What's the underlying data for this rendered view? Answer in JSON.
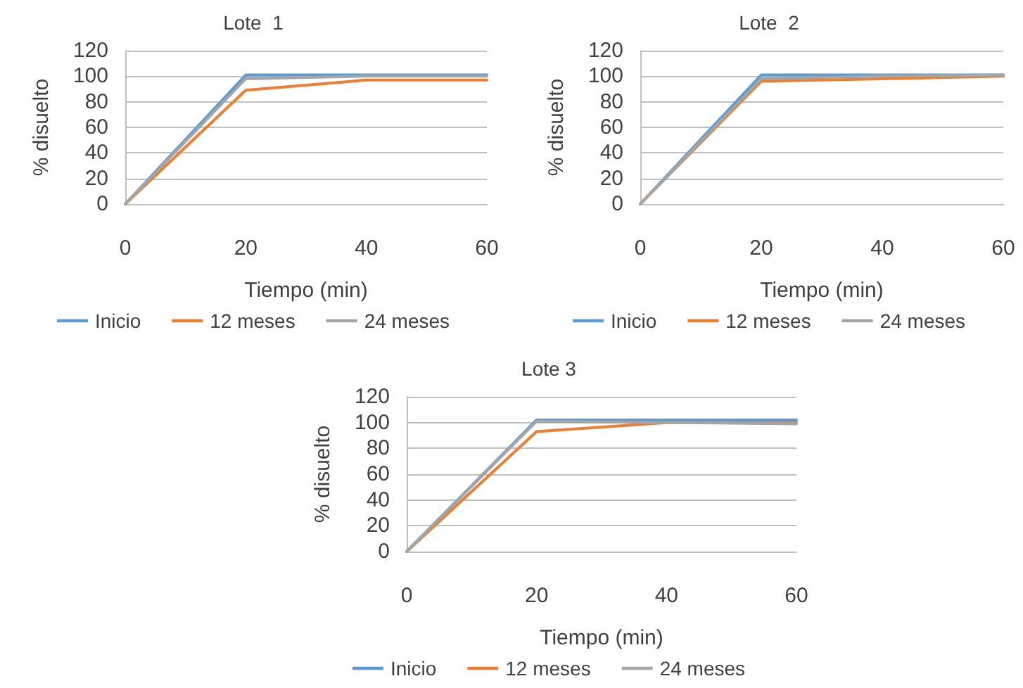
{
  "chart_data": [
    {
      "type": "line",
      "title": "Lote  1",
      "xlabel": "Tiempo (min)",
      "ylabel": "% disuelto",
      "x": [
        0,
        20,
        40,
        60
      ],
      "xlim": [
        0,
        60
      ],
      "xticks": [
        0,
        20,
        40,
        60
      ],
      "ylim": [
        0,
        120
      ],
      "yticks": [
        0,
        20,
        40,
        60,
        80,
        100,
        120
      ],
      "grid": "y",
      "legend": "bottom",
      "marker": "none",
      "line_style": "solid",
      "series": [
        {
          "name": "Inicio",
          "color": "#5b9bd5",
          "values": [
            0,
            101,
            101,
            101
          ]
        },
        {
          "name": "12 meses",
          "color": "#ed7d31",
          "values": [
            0,
            89,
            97,
            97
          ]
        },
        {
          "name": "24 meses",
          "color": "#a5a5a5",
          "values": [
            0,
            98,
            100,
            100
          ]
        }
      ]
    },
    {
      "type": "line",
      "title": "Lote  2",
      "xlabel": "Tiempo (min)",
      "ylabel": "% disuelto",
      "x": [
        0,
        20,
        40,
        60
      ],
      "xlim": [
        0,
        60
      ],
      "xticks": [
        0,
        20,
        40,
        60
      ],
      "ylim": [
        0,
        120
      ],
      "yticks": [
        0,
        20,
        40,
        60,
        80,
        100,
        120
      ],
      "grid": "y",
      "legend": "bottom",
      "marker": "none",
      "line_style": "solid",
      "series": [
        {
          "name": "Inicio",
          "color": "#5b9bd5",
          "values": [
            0,
            101,
            101,
            101
          ]
        },
        {
          "name": "12 meses",
          "color": "#ed7d31",
          "values": [
            0,
            96,
            98,
            100
          ]
        },
        {
          "name": "24 meses",
          "color": "#a5a5a5",
          "values": [
            0,
            98,
            100,
            101
          ]
        }
      ]
    },
    {
      "type": "line",
      "title": "Lote 3",
      "xlabel": "Tiempo (min)",
      "ylabel": "% disuelto",
      "x": [
        0,
        20,
        40,
        60
      ],
      "xlim": [
        0,
        60
      ],
      "xticks": [
        0,
        20,
        40,
        60
      ],
      "ylim": [
        0,
        120
      ],
      "yticks": [
        0,
        20,
        40,
        60,
        80,
        100,
        120
      ],
      "grid": "y",
      "legend": "bottom",
      "marker": "none",
      "line_style": "solid",
      "series": [
        {
          "name": "Inicio",
          "color": "#5b9bd5",
          "values": [
            0,
            102,
            102,
            102
          ]
        },
        {
          "name": "12 meses",
          "color": "#ed7d31",
          "values": [
            0,
            93,
            100,
            100
          ]
        },
        {
          "name": "24 meses",
          "color": "#a5a5a5",
          "values": [
            0,
            101,
            100,
            99
          ]
        }
      ]
    }
  ]
}
